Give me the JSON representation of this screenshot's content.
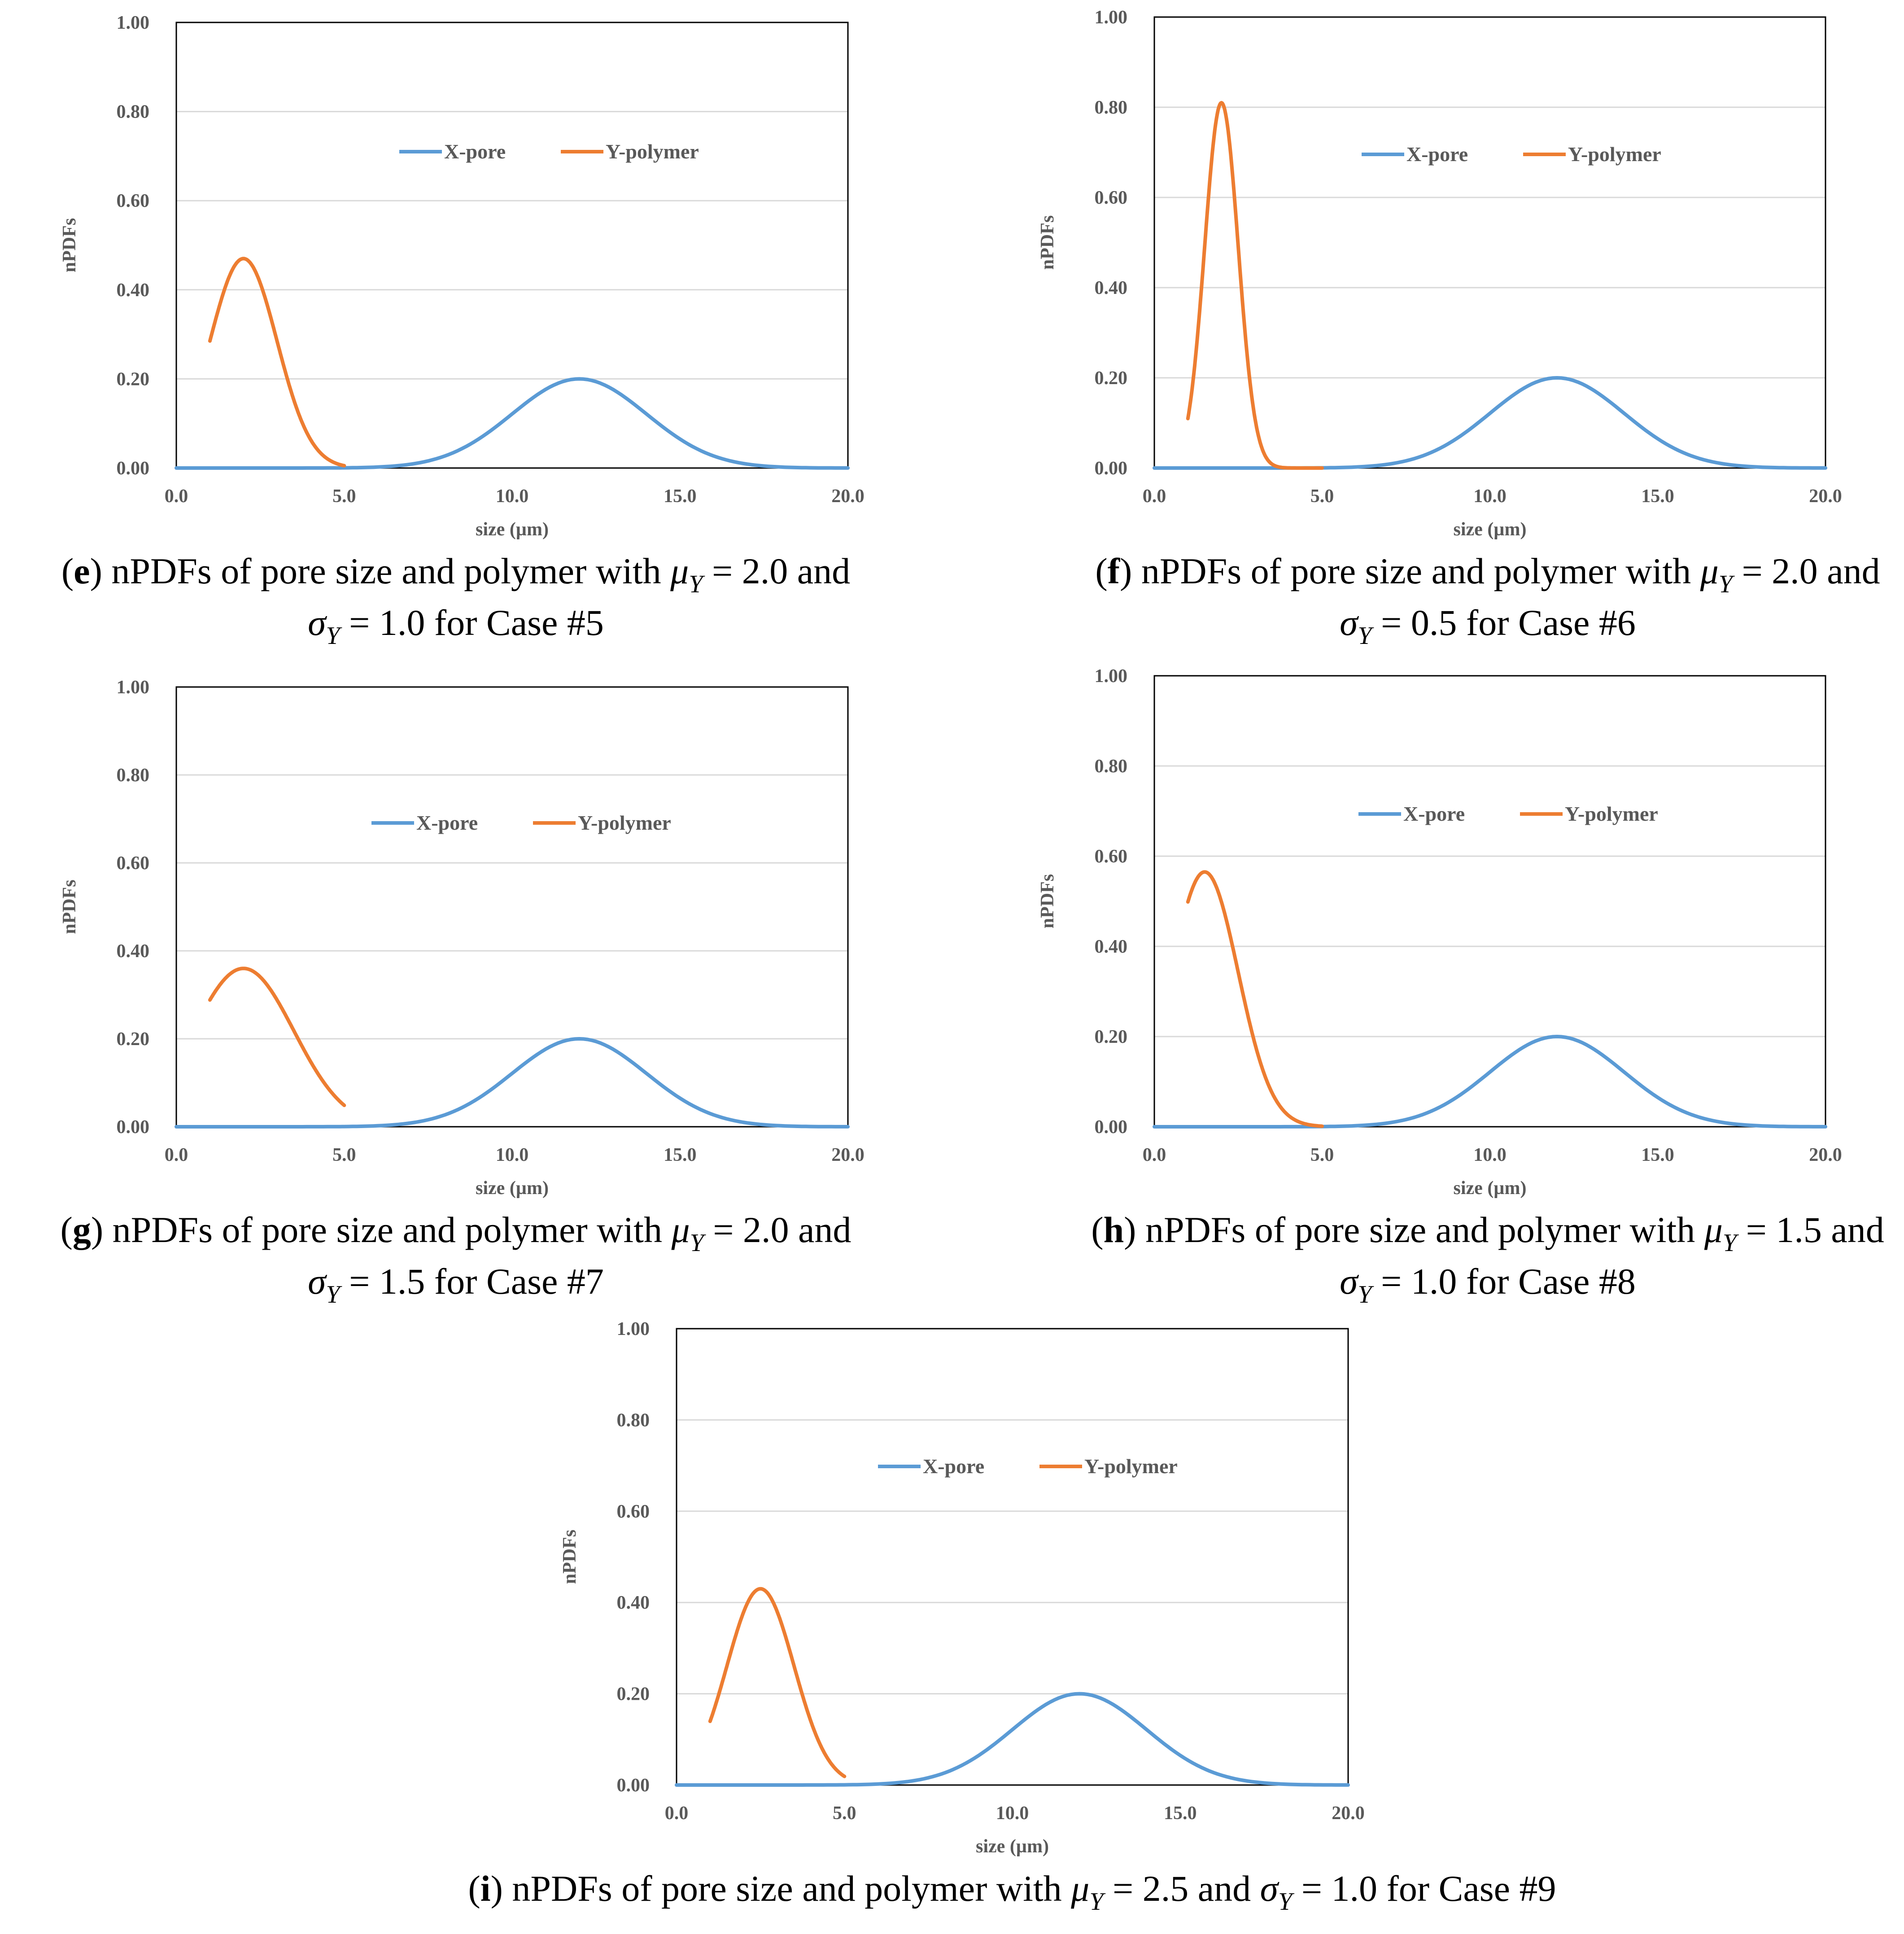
{
  "colors": {
    "x_pore": "#5b9bd5",
    "y_polymer": "#ed7d31",
    "gridline": "#d9d9d9",
    "axis_frame": "#000000",
    "text": "#595959"
  },
  "chart_data": [
    {
      "panel": "e",
      "type": "line",
      "xlabel": "size (µm)",
      "ylabel": "nPDFs",
      "xlim": [
        0,
        20
      ],
      "ylim": [
        0,
        1
      ],
      "x_ticks": [
        "0.0",
        "5.0",
        "10.0",
        "15.0",
        "20.0"
      ],
      "y_ticks": [
        "0.00",
        "0.20",
        "0.40",
        "0.60",
        "0.80",
        "1.00"
      ],
      "legend": [
        "X-pore",
        "Y-polymer"
      ],
      "legend_position": "top-center",
      "series": [
        {
          "name": "X-pore",
          "kind": "normalized-gaussian",
          "mu": 12.0,
          "sigma": 2.0,
          "peak": 0.2,
          "x_range": [
            0,
            20
          ]
        },
        {
          "name": "Y-polymer",
          "kind": "normalized-gaussian",
          "mu": 2.0,
          "sigma": 1.0,
          "peak": 0.47,
          "x_range": [
            1,
            5
          ]
        }
      ],
      "caption": {
        "letter": "e",
        "pre": " nPDFs of pore size and polymer with ",
        "mu_val": "2.0",
        "sigma_val": "1.0",
        "case": "for Case #5"
      }
    },
    {
      "panel": "f",
      "type": "line",
      "xlabel": "size (µm)",
      "ylabel": "nPDFs",
      "xlim": [
        0,
        20
      ],
      "ylim": [
        0,
        1
      ],
      "x_ticks": [
        "0.0",
        "5.0",
        "10.0",
        "15.0",
        "20.0"
      ],
      "y_ticks": [
        "0.00",
        "0.20",
        "0.40",
        "0.60",
        "0.80",
        "1.00"
      ],
      "legend": [
        "X-pore",
        "Y-polymer"
      ],
      "legend_position": "top-center",
      "series": [
        {
          "name": "X-pore",
          "kind": "normalized-gaussian",
          "mu": 12.0,
          "sigma": 2.0,
          "peak": 0.2,
          "x_range": [
            0,
            20
          ]
        },
        {
          "name": "Y-polymer",
          "kind": "normalized-gaussian",
          "mu": 2.0,
          "sigma": 0.5,
          "peak": 0.81,
          "x_range": [
            1,
            5
          ]
        }
      ],
      "caption": {
        "letter": "f",
        "pre": " nPDFs of pore size and polymer with ",
        "mu_val": "2.0",
        "sigma_val": "0.5",
        "case": "for Case #6"
      }
    },
    {
      "panel": "g",
      "type": "line",
      "xlabel": "size (µm)",
      "ylabel": "nPDFs",
      "xlim": [
        0,
        20
      ],
      "ylim": [
        0,
        1
      ],
      "x_ticks": [
        "0.0",
        "5.0",
        "10.0",
        "15.0",
        "20.0"
      ],
      "y_ticks": [
        "0.00",
        "0.20",
        "0.40",
        "0.60",
        "0.80",
        "1.00"
      ],
      "legend": [
        "X-pore",
        "Y-polymer"
      ],
      "legend_position": "top-center",
      "series": [
        {
          "name": "X-pore",
          "kind": "normalized-gaussian",
          "mu": 12.0,
          "sigma": 2.0,
          "peak": 0.2,
          "x_range": [
            0,
            20
          ]
        },
        {
          "name": "Y-polymer",
          "kind": "normalized-gaussian",
          "mu": 2.0,
          "sigma": 1.5,
          "peak": 0.36,
          "x_range": [
            1,
            5
          ]
        }
      ],
      "caption": {
        "letter": "g",
        "pre": " nPDFs of pore size and polymer with ",
        "mu_val": "2.0",
        "sigma_val": "1.5",
        "case": "for Case #7"
      }
    },
    {
      "panel": "h",
      "type": "line",
      "xlabel": "size (µm)",
      "ylabel": "nPDFs",
      "xlim": [
        0,
        20
      ],
      "ylim": [
        0,
        1
      ],
      "x_ticks": [
        "0.0",
        "5.0",
        "10.0",
        "15.0",
        "20.0"
      ],
      "y_ticks": [
        "0.00",
        "0.20",
        "0.40",
        "0.60",
        "0.80",
        "1.00"
      ],
      "legend": [
        "X-pore",
        "Y-polymer"
      ],
      "legend_position": "top-center",
      "series": [
        {
          "name": "X-pore",
          "kind": "normalized-gaussian",
          "mu": 12.0,
          "sigma": 2.0,
          "peak": 0.2,
          "x_range": [
            0,
            20
          ]
        },
        {
          "name": "Y-polymer",
          "kind": "normalized-gaussian",
          "mu": 1.5,
          "sigma": 1.0,
          "peak": 0.565,
          "x_range": [
            1,
            5
          ]
        }
      ],
      "caption": {
        "letter": "h",
        "pre": " nPDFs of pore size and polymer with ",
        "mu_val": "1.5",
        "sigma_val": "1.0",
        "case": "for Case #8"
      }
    },
    {
      "panel": "i",
      "type": "line",
      "xlabel": "size (µm)",
      "ylabel": "nPDFs",
      "xlim": [
        0,
        20
      ],
      "ylim": [
        0,
        1
      ],
      "x_ticks": [
        "0.0",
        "5.0",
        "10.0",
        "15.0",
        "20.0"
      ],
      "y_ticks": [
        "0.00",
        "0.20",
        "0.40",
        "0.60",
        "0.80",
        "1.00"
      ],
      "legend": [
        "X-pore",
        "Y-polymer"
      ],
      "legend_position": "top-center",
      "series": [
        {
          "name": "X-pore",
          "kind": "normalized-gaussian",
          "mu": 12.0,
          "sigma": 2.0,
          "peak": 0.2,
          "x_range": [
            0,
            20
          ]
        },
        {
          "name": "Y-polymer",
          "kind": "normalized-gaussian",
          "mu": 2.5,
          "sigma": 1.0,
          "peak": 0.43,
          "x_range": [
            1,
            5
          ]
        }
      ],
      "caption": {
        "letter": "i",
        "pre": " nPDFs of pore size and polymer with ",
        "mu_val": "2.5",
        "sigma_val": "1.0",
        "case": "for Case #9"
      }
    }
  ]
}
